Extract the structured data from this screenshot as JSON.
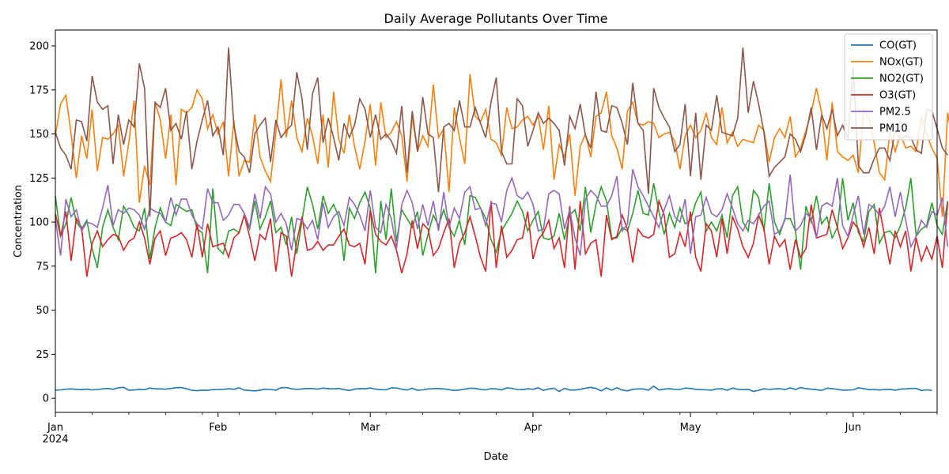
{
  "chart_data": {
    "type": "line",
    "title": "Daily Average Pollutants Over Time",
    "xlabel": "Date",
    "ylabel": "Concentration",
    "x_start": "2024-01-01",
    "x_end": "2024-06-17",
    "xlim": [
      "2024-01-01",
      "2024-06-17"
    ],
    "ylim": [
      -8,
      209
    ],
    "y_ticks": [
      0,
      25,
      50,
      75,
      100,
      125,
      150,
      175,
      200
    ],
    "x_ticks": [
      {
        "date": "2024-01-01",
        "label": "Jan",
        "sublabel": "2024"
      },
      {
        "date": "2024-02-01",
        "label": "Feb",
        "sublabel": ""
      },
      {
        "date": "2024-03-01",
        "label": "Mar",
        "sublabel": ""
      },
      {
        "date": "2024-04-01",
        "label": "Apr",
        "sublabel": ""
      },
      {
        "date": "2024-05-01",
        "label": "May",
        "sublabel": ""
      },
      {
        "date": "2024-06-01",
        "label": "Jun",
        "sublabel": ""
      }
    ],
    "grid": false,
    "legend_position": "top-right",
    "series": [
      {
        "name": "CO(GT)",
        "color": "#1f77b4",
        "values": [
          4.6,
          4.8,
          5.2,
          5.3,
          5.1,
          4.9,
          5.2,
          4.8,
          5,
          5.3,
          5.6,
          5.1,
          6,
          6.2,
          4.6,
          4.7,
          5.1,
          4.9,
          5.8,
          5.4,
          5.3,
          5.2,
          5.6,
          6,
          6.1,
          5.4,
          4.5,
          4.3,
          4.6,
          4.5,
          4.9,
          5,
          5.1,
          5.4,
          5.1,
          6,
          4.7,
          4.4,
          4.2,
          4.6,
          5.2,
          5,
          4.6,
          6,
          6.1,
          5.4,
          5,
          5.3,
          5.6,
          5.5,
          5.2,
          5.8,
          5.4,
          5.3,
          5.6,
          4.9,
          4.4,
          5.2,
          5.5,
          5.4,
          5.8,
          5.2,
          4.9,
          4.8,
          5.9,
          5.8,
          5.2,
          4.7,
          5.7,
          4.5,
          4.8,
          5.3,
          5.4,
          5.6,
          5.3,
          4.9,
          4.4,
          4.7,
          5.2,
          5.7,
          5.6,
          5,
          4.8,
          5.5,
          5.3,
          4.8,
          5.9,
          5.6,
          5,
          4.9,
          5.4,
          5.1,
          6,
          4.5,
          5.3,
          5.7,
          3.9,
          5.6,
          4.7,
          4.7,
          5.1,
          5.7,
          6.2,
          5.6,
          4.2,
          5.9,
          4.6,
          6,
          4.7,
          4.2,
          5.1,
          5.3,
          5.3,
          4.6,
          6.9,
          4.7,
          5.2,
          5.5,
          5,
          5,
          5.8,
          5.6,
          5.1,
          4.9,
          4.8,
          4.6,
          5.3,
          5.4,
          4.6,
          5.8,
          5.1,
          4.9,
          5.1,
          3.9,
          4.5,
          5.4,
          5,
          5.3,
          5.5,
          4.9,
          5.9,
          5,
          6.1,
          5.5,
          5.2,
          4.9,
          4.4,
          5.7,
          5.5,
          5.1,
          4.6,
          4.7,
          4.8,
          5.9,
          5.5,
          4.9,
          5,
          4.7,
          5,
          5.1,
          4.6,
          5.2,
          5.3,
          5.6,
          5.6,
          4.4,
          4.8,
          4.5
        ]
      },
      {
        "name": "NOx(GT)",
        "color": "#ff7f0e",
        "values": [
          149,
          167,
          172,
          150,
          125,
          149,
          136,
          164,
          129,
          148,
          147,
          150,
          155,
          126,
          145,
          169,
          111,
          132,
          121,
          168,
          158,
          136,
          161,
          121,
          164,
          162,
          165,
          175,
          170,
          153,
          161,
          150,
          157,
          126,
          158,
          126,
          135,
          134,
          161,
          137,
          129,
          123,
          151,
          181,
          148,
          169,
          148,
          140,
          159,
          149,
          133,
          161,
          131,
          174,
          147,
          139,
          161,
          143,
          130,
          146,
          167,
          132,
          168,
          148,
          151,
          157,
          149,
          123,
          160,
          140,
          149,
          143,
          178,
          148,
          153,
          117,
          165,
          148,
          133,
          184,
          160,
          157,
          164,
          147,
          145,
          138,
          165,
          153,
          154,
          158,
          160,
          155,
          160,
          141,
          166,
          124,
          144,
          137,
          150,
          115,
          143,
          150,
          137,
          160,
          162,
          174,
          149,
          142,
          130,
          163,
          168,
          156,
          155,
          157,
          156,
          148,
          150,
          151,
          146,
          130,
          149,
          155,
          148,
          152,
          162,
          148,
          144,
          165,
          145,
          151,
          143,
          147,
          146,
          145,
          155,
          152,
          134,
          148,
          153,
          148,
          160,
          137,
          142,
          152,
          162,
          176,
          162,
          135,
          168,
          140,
          137,
          135,
          138,
          128,
          164,
          159,
          145,
          128,
          124,
          151,
          140,
          150,
          142,
          143,
          140,
          160,
          150,
          142,
          136,
          103,
          162,
          145,
          120,
          150,
          132,
          148
        ]
      },
      {
        "name": "NO2(GT)",
        "color": "#2ca02c",
        "values": [
          115,
          92,
          99,
          114,
          100,
          96,
          101,
          85,
          74,
          97,
          107,
          97,
          90,
          109,
          104,
          97,
          95,
          108,
          79,
          97,
          108,
          100,
          98,
          110,
          108,
          106,
          107,
          96,
          94,
          71,
          119,
          85,
          82,
          95,
          96,
          94,
          104,
          96,
          112,
          96,
          103,
          112,
          94,
          97,
          87,
          103,
          82,
          101,
          120,
          110,
          96,
          115,
          105,
          110,
          103,
          78,
          108,
          102,
          111,
          117,
          108,
          71,
          112,
          90,
          119,
          89,
          107,
          102,
          97,
          106,
          81,
          93,
          104,
          98,
          107,
          97,
          92,
          101,
          87,
          115,
          114,
          108,
          102,
          90,
          83,
          95,
          100,
          105,
          112,
          106,
          95,
          101,
          106,
          91,
          90,
          92,
          105,
          90,
          104,
          107,
          95,
          120,
          94,
          110,
          120,
          112,
          91,
          91,
          97,
          95,
          105,
          118,
          105,
          104,
          122,
          106,
          93,
          105,
          97,
          108,
          99,
          101,
          111,
          117,
          95,
          100,
          95,
          104,
          91,
          115,
          120,
          100,
          95,
          118,
          114,
          95,
          122,
          100,
          93,
          102,
          102,
          95,
          73,
          109,
          100,
          115,
          99,
          103,
          91,
          97,
          125,
          101,
          111,
          94,
          89,
          106,
          110,
          88,
          94,
          95,
          91,
          98,
          108,
          125,
          92,
          96,
          98,
          111,
          98,
          93,
          112
        ]
      },
      {
        "name": "O3(GT)",
        "color": "#d62728",
        "values": [
          105,
          92,
          106,
          78,
          102,
          97,
          69,
          88,
          95,
          86,
          90,
          93,
          92,
          84,
          89,
          91,
          100,
          91,
          76,
          91,
          95,
          81,
          91,
          92,
          94,
          90,
          80,
          99,
          80,
          99,
          86,
          87,
          88,
          80,
          91,
          94,
          104,
          92,
          78,
          93,
          90,
          102,
          72,
          94,
          92,
          69,
          89,
          103,
          84,
          85,
          89,
          84,
          87,
          87,
          92,
          96,
          87,
          86,
          88,
          76,
          107,
          93,
          89,
          87,
          92,
          84,
          71,
          82,
          101,
          85,
          99,
          96,
          81,
          85,
          94,
          102,
          74,
          88,
          94,
          103,
          92,
          80,
          72,
          112,
          74,
          98,
          80,
          84,
          90,
          91,
          106,
          79,
          90,
          94,
          101,
          85,
          91,
          74,
          109,
          73,
          112,
          82,
          88,
          90,
          69,
          104,
          90,
          92,
          104,
          96,
          77,
          96,
          92,
          91,
          93,
          112,
          104,
          80,
          82,
          94,
          86,
          106,
          80,
          72,
          99,
          95,
          80,
          102,
          82,
          103,
          96,
          86,
          80,
          88,
          104,
          96,
          76,
          92,
          86,
          90,
          73,
          90,
          80,
          85,
          110,
          91,
          92,
          93,
          107,
          97,
          85,
          91,
          100,
          96,
          86,
          97,
          82,
          108,
          92,
          76,
          95,
          86,
          95,
          72,
          91,
          78,
          86,
          79,
          92,
          74,
          111
        ]
      },
      {
        "name": "PM2.5",
        "color": "#9467bd",
        "values": [
          102,
          81,
          113,
          103,
          107,
          95,
          100,
          99,
          97,
          108,
          121,
          98,
          107,
          105,
          108,
          107,
          104,
          96,
          108,
          106,
          105,
          100,
          114,
          104,
          113,
          113,
          104,
          99,
          96,
          119,
          111,
          111,
          101,
          104,
          110,
          110,
          105,
          97,
          116,
          102,
          120,
          116,
          100,
          105,
          99,
          84,
          102,
          101,
          96,
          101,
          90,
          111,
          97,
          103,
          106,
          98,
          114,
          110,
          104,
          95,
          118,
          97,
          94,
          110,
          102,
          85,
          110,
          118,
          111,
          96,
          110,
          98,
          112,
          95,
          117,
          97,
          108,
          102,
          117,
          120,
          107,
          108,
          98,
          111,
          110,
          100,
          118,
          125,
          115,
          113,
          117,
          110,
          95,
          96,
          116,
          118,
          116,
          96,
          107,
          91,
          81,
          113,
          118,
          115,
          109,
          109,
          115,
          126,
          95,
          99,
          130,
          120,
          115,
          109,
          103,
          97,
          107,
          115,
          103,
          100,
          113,
          82,
          103,
          104,
          114,
          105,
          103,
          107,
          116,
          108,
          99,
          95,
          101,
          99,
          104,
          109,
          112,
          93,
          95,
          101,
          127,
          95,
          98,
          105,
          102,
          91,
          109,
          111,
          109,
          125,
          98,
          92,
          104,
          115,
          93,
          110,
          108,
          104,
          109,
          120,
          103,
          117,
          101,
          86,
          92,
          101,
          97,
          106,
          104,
          114,
          86
        ]
      },
      {
        "name": "PM10",
        "color": "#8c564b",
        "values": [
          151,
          142,
          138,
          130,
          158,
          157,
          146,
          183,
          168,
          164,
          166,
          133,
          161,
          144,
          158,
          154,
          190,
          176,
          103,
          168,
          165,
          176,
          152,
          156,
          147,
          163,
          130,
          146,
          158,
          169,
          149,
          154,
          138,
          199,
          155,
          140,
          137,
          128,
          150,
          155,
          159,
          134,
          158,
          148,
          152,
          155,
          185,
          170,
          141,
          173,
          182,
          145,
          159,
          148,
          135,
          156,
          148,
          155,
          170,
          164,
          148,
          161,
          147,
          150,
          146,
          139,
          166,
          128,
          163,
          140,
          171,
          150,
          148,
          117,
          154,
          156,
          152,
          169,
          154,
          154,
          165,
          156,
          148,
          168,
          182,
          140,
          133,
          133,
          170,
          166,
          143,
          152,
          162,
          156,
          159,
          156,
          152,
          132,
          160,
          153,
          167,
          149,
          142,
          174,
          152,
          151,
          166,
          165,
          156,
          144,
          179,
          156,
          152,
          116,
          176,
          165,
          159,
          154,
          140,
          144,
          167,
          126,
          162,
          124,
          155,
          152,
          172,
          151,
          150,
          149,
          159,
          199,
          162,
          180,
          167,
          151,
          126,
          131,
          134,
          137,
          150,
          147,
          140,
          150,
          165,
          141,
          161,
          153,
          164,
          149,
          155,
          147,
          188,
          132,
          128,
          128,
          136,
          142,
          142,
          135,
          152,
          147,
          149,
          148,
          141,
          139,
          164,
          163,
          153,
          142,
          138
        ]
      }
    ]
  }
}
